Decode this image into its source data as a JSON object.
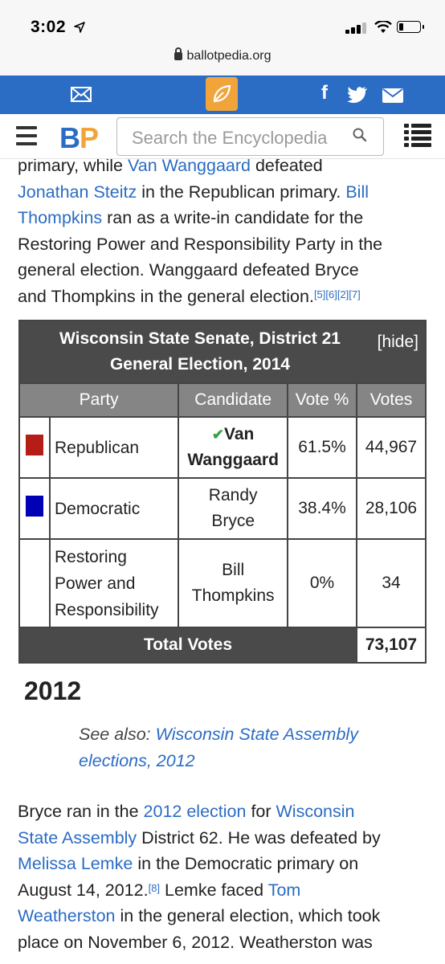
{
  "status_bar": {
    "time": "3:02",
    "battery_fraction": 0.2
  },
  "browser": {
    "url": "ballotpedia.org"
  },
  "site": {
    "logo_b": "B",
    "logo_p": "P",
    "search_placeholder": "Search the Encyclopedia",
    "icons": [
      "mail-icon",
      "leaf-icon",
      "facebook-icon",
      "twitter-icon",
      "envelope-icon",
      "menu-icon",
      "search-icon",
      "list-icon"
    ]
  },
  "article": {
    "intro": {
      "l1_a": "primary, while ",
      "l1_link": "Van Wanggaard",
      "l1_b": " defeated",
      "l2_link": "Jonathan Steitz",
      "l2_a": " in the Republican primary. ",
      "l2_link2": "Bill",
      "l3_link": "Thompkins",
      "l3_a": " ran as a write-in candidate for the",
      "l4": "Restoring Power and Responsibility Party in the",
      "l5": "general election. Wanggaard defeated Bryce",
      "l6": "and Thompkins in the general election.",
      "refs": "[5][6][2][7]"
    },
    "results_table": {
      "title_line1": "Wisconsin State Senate, District 21",
      "title_line2": "General Election, 2014",
      "hide_label": "[hide]",
      "headers": [
        "Party",
        "Candidate",
        "Vote %",
        "Votes"
      ],
      "rows": [
        {
          "color": "#b51e17",
          "party": "Republican",
          "candidate_l1": "Van",
          "candidate_l2": "Wanggaard",
          "winner_mark": "✔",
          "vote_pct": "61.5%",
          "votes": "44,967"
        },
        {
          "color": "#0000b5",
          "party": "Democratic",
          "candidate_l1": "Randy",
          "candidate_l2": "Bryce",
          "vote_pct": "38.4%",
          "votes": "28,106"
        },
        {
          "color": "#ffffff",
          "party_l1": "Restoring",
          "party_l2": "Power and",
          "party_l3": "Responsibility",
          "candidate_l1": "Bill",
          "candidate_l2": "Thompkins",
          "vote_pct": "0%",
          "votes": "34"
        }
      ],
      "total_label": "Total Votes",
      "total_votes": "73,107"
    },
    "section_2012": {
      "heading": "2012",
      "see_also_label": "See also: ",
      "see_also_link_l1": "Wisconsin State Assembly",
      "see_also_link_l2": "elections, 2012",
      "p_l1_a": "Bryce ran in the ",
      "p_l1_link": "2012 election",
      "p_l1_b": " for ",
      "p_l1_link2": "Wisconsin",
      "p_l2_link": "State Assembly",
      "p_l2_a": " District 62. He was defeated by",
      "p_l3_link": "Melissa Lemke",
      "p_l3_a": " in the Democratic primary on",
      "p_l4_a": "August 14, 2012.",
      "p_l4_ref": "[8]",
      "p_l4_b": " Lemke faced ",
      "p_l4_link": "Tom",
      "p_l5_link": "Weatherston",
      "p_l5_a": " in the general election, which took",
      "p_l6": "place on November 6, 2012. Weatherston was"
    }
  }
}
